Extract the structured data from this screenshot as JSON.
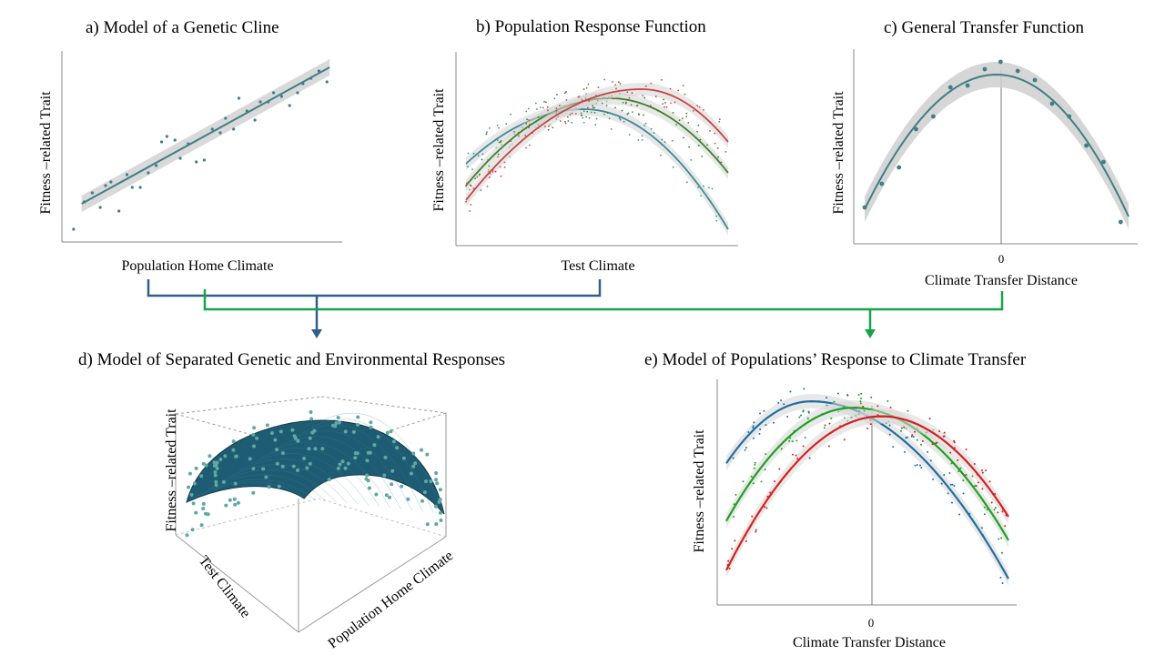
{
  "figure": {
    "panels": [
      {
        "id": "a",
        "title": "a) Model of a Genetic Cline",
        "xlabel": "Population Home Climate",
        "ylabel": "Fitness –related Trait"
      },
      {
        "id": "b",
        "title": "b) Population Response Function",
        "xlabel": "Test Climate",
        "ylabel": "Fitness –related Trait"
      },
      {
        "id": "c",
        "title": "c) General Transfer Function",
        "xlabel": "Climate Transfer Distance",
        "ylabel": "Fitness –related Trait",
        "xtick": "0"
      },
      {
        "id": "d",
        "title": "d) Model of Separated Genetic and Environmental Responses",
        "xlabel": "Population Home Climate",
        "zlabel": "Test Climate",
        "ylabel": "Fitness –related Trait"
      },
      {
        "id": "e",
        "title": "e) Model of Populations’ Response to Climate Transfer",
        "xlabel": "Climate Transfer Distance",
        "ylabel": "Fitness –related Trait",
        "xtick": "0"
      }
    ],
    "connector_colors": {
      "to_d": "#2f5f8a",
      "to_e": "#17a34a"
    }
  },
  "chart_data": [
    {
      "type": "scatter",
      "panel": "a",
      "title": "a) Model of a Genetic Cline",
      "xlabel": "Population Home Climate",
      "ylabel": "Fitness –related Trait",
      "xlim": [
        0,
        1
      ],
      "ylim": [
        0,
        1
      ],
      "fit": {
        "kind": "linear",
        "x": [
          0.05,
          0.98
        ],
        "y": [
          0.19,
          0.94
        ]
      },
      "series": [
        {
          "color": "#3f7f86",
          "points": [
            [
              0.02,
              0.05
            ],
            [
              0.06,
              0.2
            ],
            [
              0.09,
              0.25
            ],
            [
              0.12,
              0.17
            ],
            [
              0.14,
              0.29
            ],
            [
              0.16,
              0.31
            ],
            [
              0.19,
              0.15
            ],
            [
              0.22,
              0.35
            ],
            [
              0.24,
              0.28
            ],
            [
              0.27,
              0.28
            ],
            [
              0.3,
              0.36
            ],
            [
              0.33,
              0.4
            ],
            [
              0.35,
              0.53
            ],
            [
              0.37,
              0.56
            ],
            [
              0.4,
              0.54
            ],
            [
              0.42,
              0.44
            ],
            [
              0.45,
              0.52
            ],
            [
              0.48,
              0.42
            ],
            [
              0.51,
              0.43
            ],
            [
              0.54,
              0.6
            ],
            [
              0.57,
              0.58
            ],
            [
              0.59,
              0.66
            ],
            [
              0.62,
              0.6
            ],
            [
              0.64,
              0.77
            ],
            [
              0.67,
              0.7
            ],
            [
              0.7,
              0.65
            ],
            [
              0.72,
              0.75
            ],
            [
              0.75,
              0.75
            ],
            [
              0.77,
              0.8
            ],
            [
              0.8,
              0.78
            ],
            [
              0.83,
              0.73
            ],
            [
              0.86,
              0.8
            ],
            [
              0.88,
              0.85
            ],
            [
              0.91,
              0.88
            ],
            [
              0.94,
              0.92
            ],
            [
              0.97,
              0.86
            ]
          ]
        }
      ]
    },
    {
      "type": "scatter",
      "panel": "b",
      "title": "b) Population Response Function",
      "xlabel": "Test Climate",
      "ylabel": "Fitness –related Trait",
      "xlim": [
        0,
        1
      ],
      "ylim": [
        0,
        1
      ],
      "series": [
        {
          "color": "#3f8a95",
          "curve": {
            "peak_x": 0.45,
            "peak_y": 0.71,
            "start_y": 0.41,
            "end_y": 0.05
          }
        },
        {
          "color": "#3f7f2a",
          "curve": {
            "peak_x": 0.55,
            "peak_y": 0.77,
            "start_y": 0.29,
            "end_y": 0.36
          }
        },
        {
          "color": "#c84444",
          "curve": {
            "peak_x": 0.67,
            "peak_y": 0.82,
            "start_y": 0.21,
            "end_y": 0.53
          }
        }
      ]
    },
    {
      "type": "scatter",
      "panel": "c",
      "title": "c) General Transfer Function",
      "xlabel": "Climate Transfer Distance",
      "ylabel": "Fitness –related Trait",
      "xlim": [
        -1,
        1
      ],
      "ylim": [
        0,
        1
      ],
      "fit": {
        "kind": "quadratic",
        "peak_x": 0,
        "peak_y": 0.9,
        "end_y": 0.12
      },
      "series": [
        {
          "color": "#3f7f86",
          "points": [
            [
              -1.0,
              0.17
            ],
            [
              -0.87,
              0.3
            ],
            [
              -0.74,
              0.39
            ],
            [
              -0.61,
              0.6
            ],
            [
              -0.48,
              0.67
            ],
            [
              -0.35,
              0.83
            ],
            [
              -0.22,
              0.84
            ],
            [
              -0.09,
              0.93
            ],
            [
              0.03,
              0.97
            ],
            [
              0.16,
              0.92
            ],
            [
              0.29,
              0.87
            ],
            [
              0.42,
              0.74
            ],
            [
              0.55,
              0.67
            ],
            [
              0.68,
              0.51
            ],
            [
              0.81,
              0.42
            ],
            [
              0.94,
              0.09
            ]
          ]
        }
      ]
    },
    {
      "type": "surface",
      "panel": "d",
      "title": "d) Model of Separated Genetic and Environmental Responses",
      "xlabel": "Population Home Climate",
      "zlabel": "Test Climate",
      "ylabel": "Fitness –related Trait",
      "surface_color": "#1e5c73",
      "point_color": "#5fa8a3"
    },
    {
      "type": "scatter",
      "panel": "e",
      "title": "e) Model of Populations’ Response to Climate Transfer",
      "xlabel": "Climate Transfer Distance",
      "ylabel": "Fitness –related Trait",
      "xlim": [
        -1,
        1
      ],
      "ylim": [
        0,
        1
      ],
      "series": [
        {
          "color": "#1f6fa0",
          "curve": {
            "peak_x": -0.4,
            "peak_y": 0.91,
            "start_y": 0.62,
            "end_y": 0.08
          }
        },
        {
          "color": "#20a020",
          "curve": {
            "peak_x": -0.1,
            "peak_y": 0.88,
            "start_y": 0.35,
            "end_y": 0.26
          }
        },
        {
          "color": "#d62020",
          "curve": {
            "peak_x": 0.1,
            "peak_y": 0.84,
            "start_y": 0.12,
            "end_y": 0.37
          }
        }
      ]
    }
  ]
}
